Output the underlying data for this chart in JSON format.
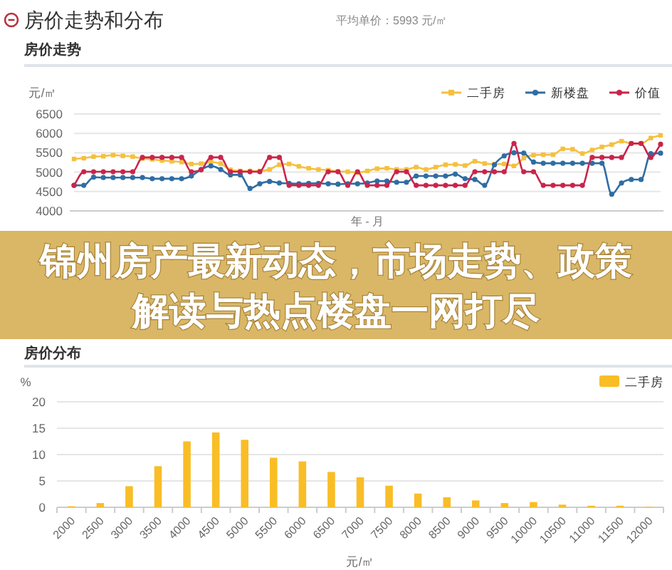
{
  "chart_data": [
    {
      "type": "other",
      "title": "房价走势和分布",
      "annotations": [
        "平均单价：5993 元/㎡"
      ]
    },
    {
      "type": "line",
      "title": "房价走势",
      "ylabel": "元/㎡",
      "xlabel": "年 - 月",
      "categories": [
        null,
        null,
        null,
        null,
        null,
        null,
        null,
        null,
        null,
        null,
        null,
        null,
        null,
        null,
        null,
        null,
        null,
        null,
        null,
        null,
        null,
        null,
        null,
        null,
        null,
        null,
        null,
        null,
        null,
        null,
        null,
        null,
        null,
        null,
        null,
        null,
        null,
        null,
        null,
        null,
        null,
        null,
        null,
        null,
        null,
        null,
        null,
        null,
        null,
        null,
        null,
        null,
        null,
        null,
        null,
        null,
        null,
        null,
        null,
        null,
        null
      ],
      "ylim": [
        4000,
        6500
      ],
      "yticks": [
        4000,
        4500,
        5000,
        5500,
        6000,
        6500
      ],
      "grid": "y",
      "legend": "top right",
      "series": [
        {
          "name": "二手房",
          "color": "#f5c040",
          "marker": "square",
          "values": [
            5340,
            5360,
            5400,
            5410,
            5440,
            5420,
            5400,
            5350,
            5330,
            5300,
            5280,
            5260,
            5210,
            5220,
            5260,
            5220,
            5060,
            5030,
            5030,
            5030,
            5070,
            5190,
            5210,
            5150,
            5100,
            5070,
            5050,
            5020,
            5010,
            4990,
            5030,
            5090,
            5100,
            5070,
            5070,
            5130,
            5070,
            5130,
            5190,
            5200,
            5170,
            5280,
            5220,
            5210,
            5210,
            5160,
            5360,
            5440,
            5450,
            5450,
            5600,
            5590,
            5480,
            5570,
            5650,
            5710,
            5800,
            5740,
            5740,
            5880,
            5950
          ]
        },
        {
          "name": "新楼盘",
          "color": "#2e6da4",
          "marker": "circle",
          "values": [
            4660,
            4660,
            4870,
            4860,
            4860,
            4860,
            4860,
            4860,
            4830,
            4830,
            4830,
            4830,
            4900,
            5070,
            5160,
            5070,
            4930,
            4930,
            4580,
            4700,
            4760,
            4720,
            4710,
            4700,
            4710,
            4710,
            4700,
            4690,
            4700,
            4700,
            4720,
            4770,
            4770,
            4740,
            4740,
            4900,
            4900,
            4900,
            4900,
            4950,
            4830,
            4810,
            4660,
            5190,
            5420,
            5500,
            5490,
            5260,
            5230,
            5230,
            5230,
            5230,
            5230,
            5230,
            5230,
            4430,
            4720,
            4810,
            4810,
            5480,
            5490
          ]
        },
        {
          "name": "价值",
          "color": "#c9254b",
          "marker": "circle",
          "values": [
            4660,
            5010,
            5010,
            5010,
            5010,
            5010,
            5010,
            5380,
            5380,
            5380,
            5380,
            5380,
            5010,
            5060,
            5380,
            5380,
            5010,
            5010,
            5010,
            5010,
            5380,
            5380,
            4660,
            4660,
            4660,
            4660,
            5010,
            5010,
            4660,
            5010,
            4660,
            4660,
            4660,
            5010,
            5010,
            4660,
            4660,
            4660,
            4660,
            4660,
            4660,
            5010,
            5010,
            5010,
            5010,
            5740,
            5010,
            5010,
            4660,
            4660,
            4660,
            4660,
            4660,
            5380,
            5380,
            5380,
            5380,
            5740,
            5740,
            5380,
            5720
          ]
        }
      ]
    },
    {
      "type": "other",
      "title": "锦州房产最新动态，市场走势、政策解读与热点楼盘一网打尽"
    },
    {
      "type": "bar",
      "title": "房价分布",
      "ylabel": "%",
      "xlabel": "元/㎡",
      "categories": [
        "2000",
        "2500",
        "3000",
        "3500",
        "4000",
        "4500",
        "5000",
        "5500",
        "6000",
        "6500",
        "7000",
        "7500",
        "8000",
        "8500",
        "9000",
        "9500",
        "10000",
        "10500",
        "11000",
        "11500",
        "12000"
      ],
      "ylim": [
        0,
        20
      ],
      "yticks": [
        0,
        5,
        10,
        15,
        20
      ],
      "grid": "y",
      "legend": "top right",
      "series": [
        {
          "name": "二手房",
          "color": "#f9bd26",
          "values": [
            0.2,
            0.8,
            4.0,
            7.8,
            12.5,
            14.2,
            12.8,
            9.4,
            8.7,
            6.7,
            5.7,
            4.1,
            2.6,
            1.9,
            1.3,
            0.8,
            1.0,
            0.5,
            0.3,
            0.3,
            0.1
          ]
        }
      ]
    }
  ]
}
